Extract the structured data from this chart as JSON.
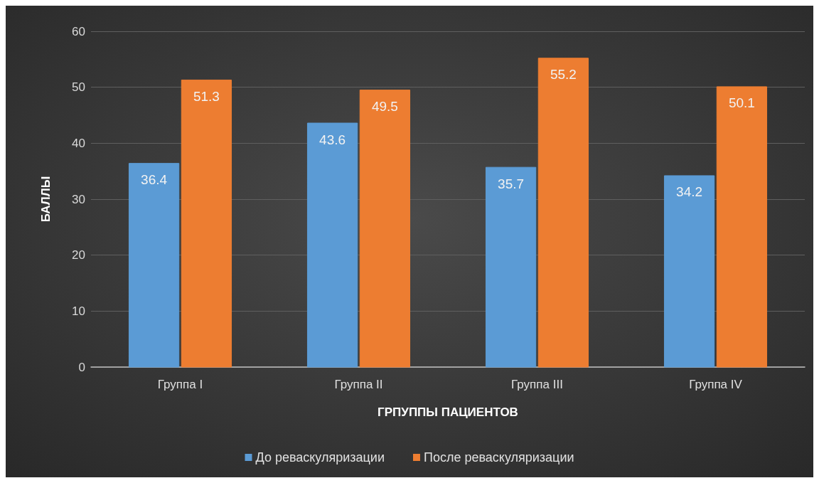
{
  "chart_data": {
    "type": "bar",
    "xlabel": "ГРПУППЫ ПАЦИЕНТОВ",
    "ylabel": "БАЛЛЫ",
    "categories": [
      "Группа I",
      "Группа II",
      "Группа III",
      "Группа IV"
    ],
    "series": [
      {
        "name": "До реваскуляризации",
        "color": "#5b9bd5",
        "values": [
          36.4,
          43.6,
          35.7,
          34.2
        ]
      },
      {
        "name": "После реваскуляризации",
        "color": "#ed7d31",
        "values": [
          51.3,
          49.5,
          55.2,
          50.1
        ]
      }
    ],
    "ylim": [
      0,
      60
    ],
    "yticks": [
      0,
      10,
      20,
      30,
      40,
      50,
      60
    ],
    "grid": "y",
    "legend": "bottom",
    "data_labels": true
  }
}
